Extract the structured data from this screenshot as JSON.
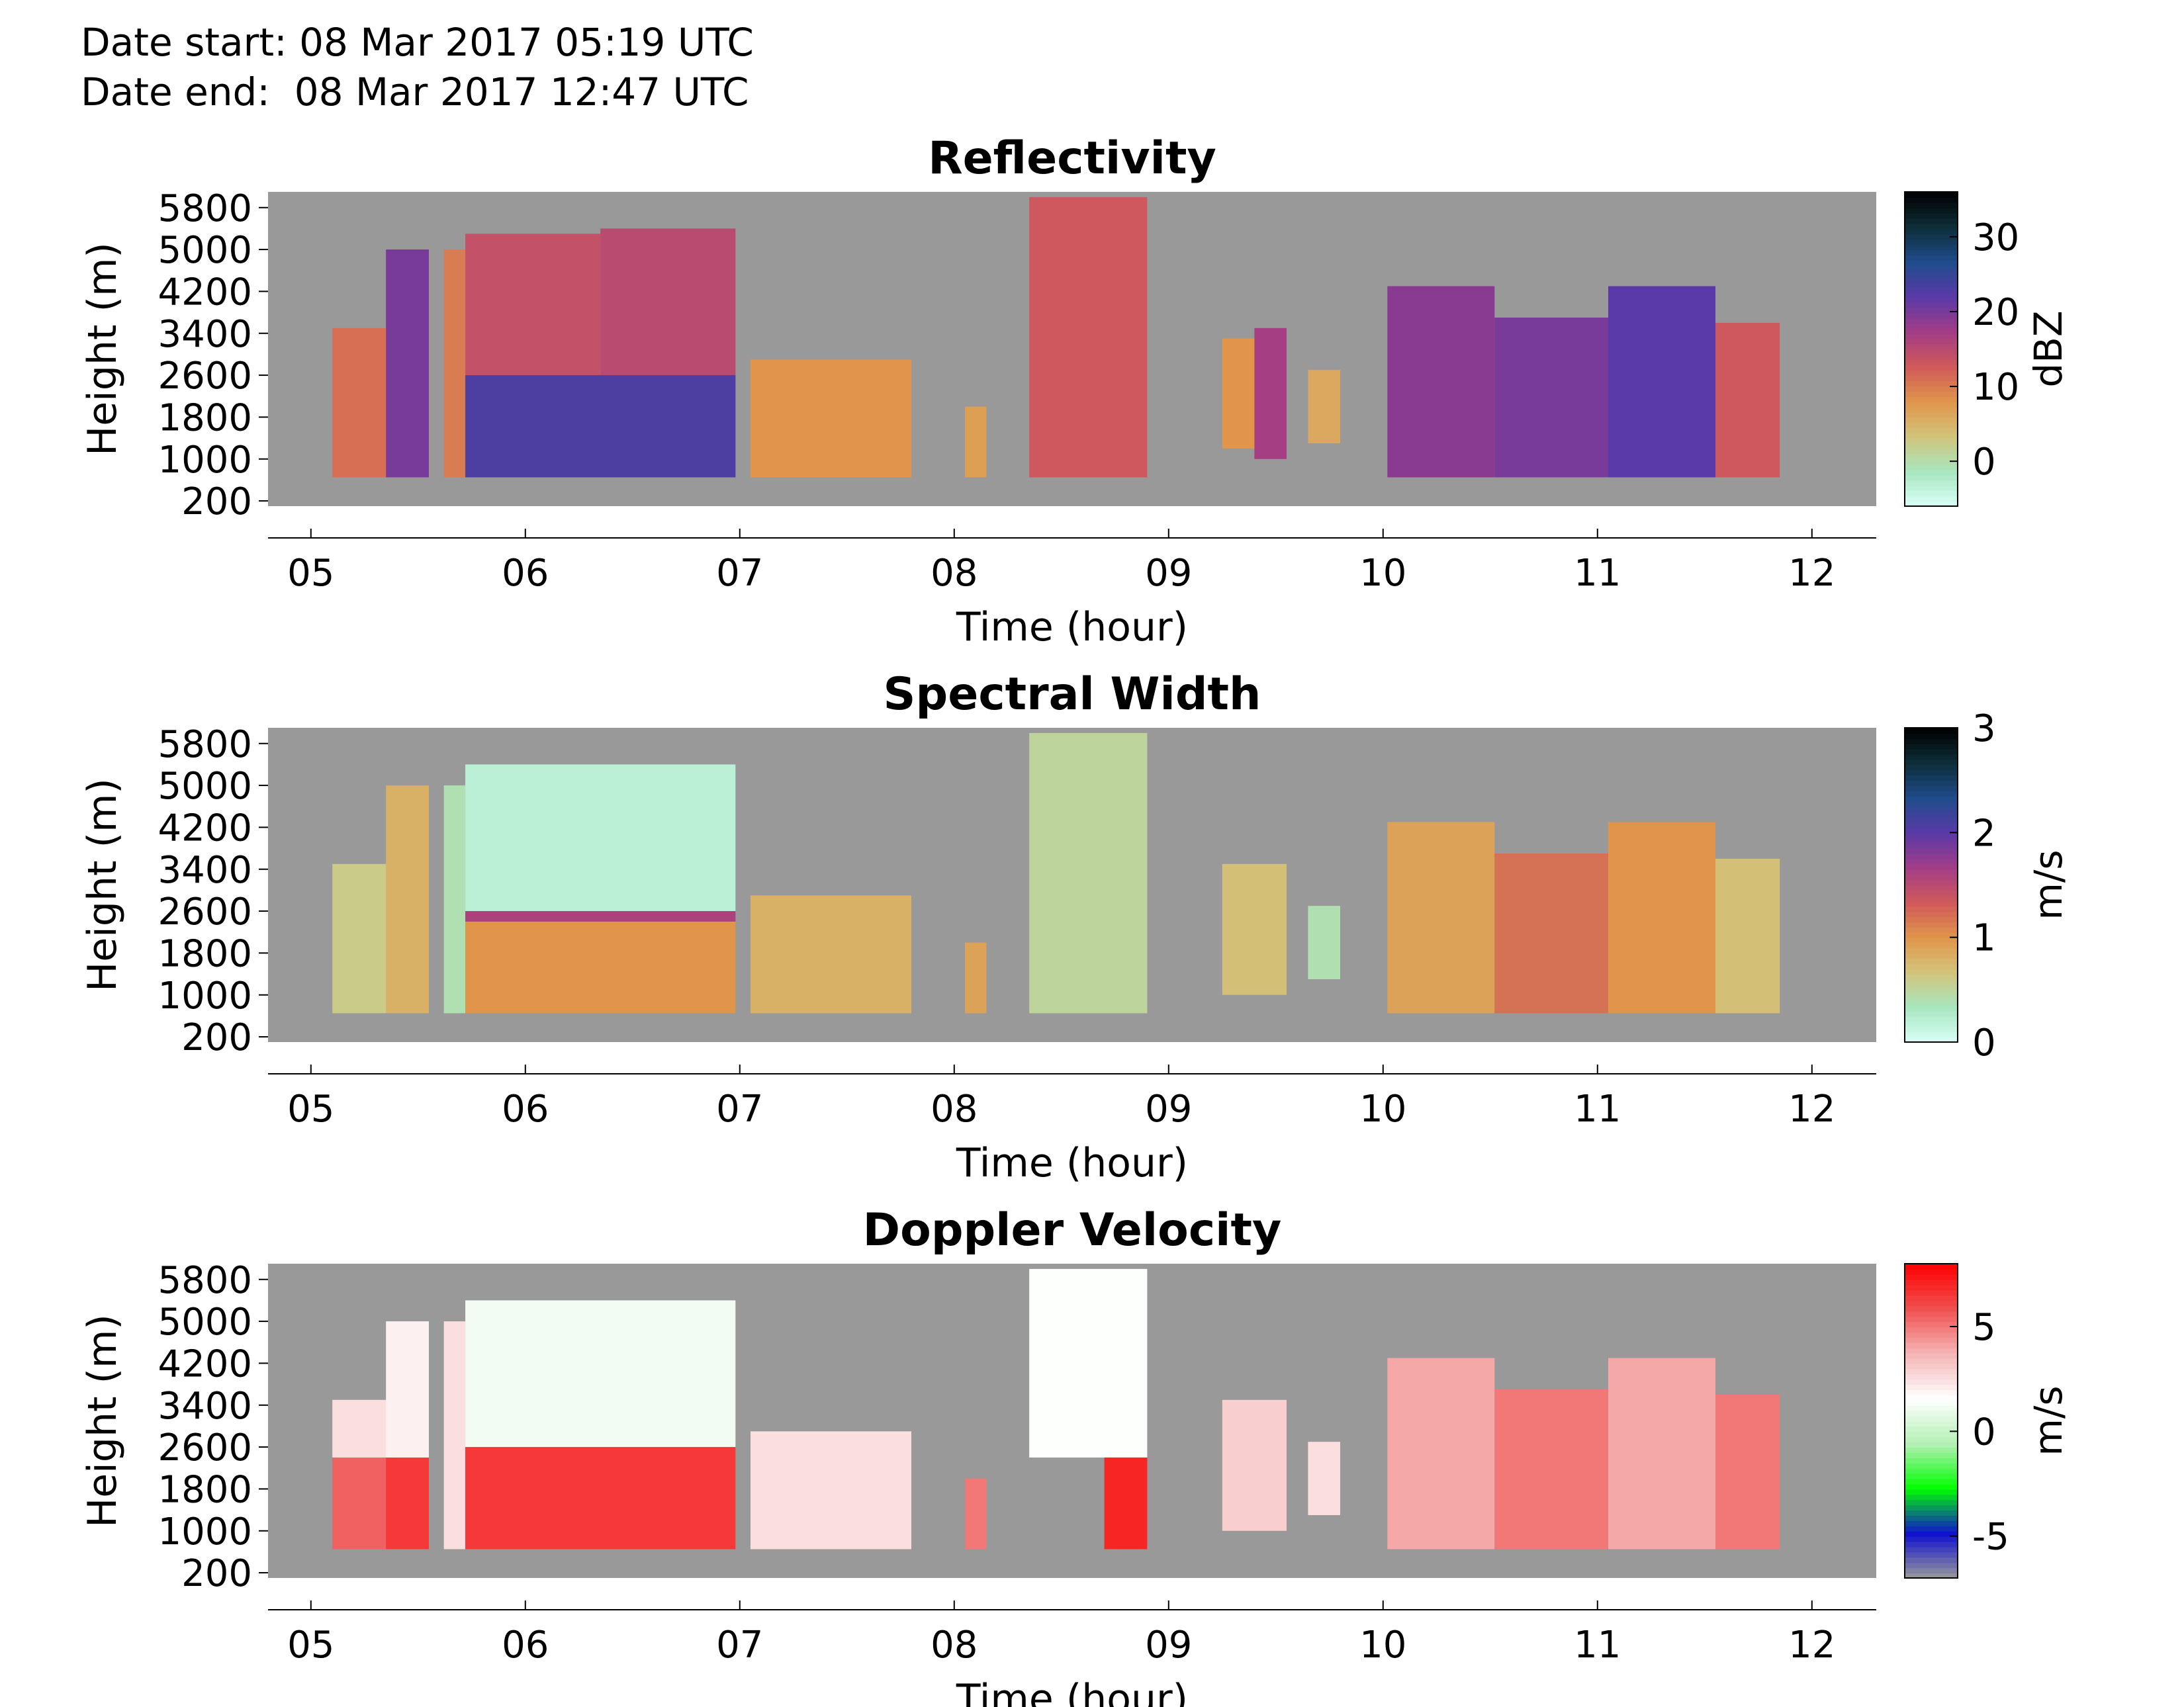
{
  "header": {
    "date_start": "Date start: 08 Mar 2017 05:19 UTC",
    "date_end": "Date end:  08 Mar 2017 12:47 UTC"
  },
  "chart_data": [
    {
      "type": "heatmap",
      "title": "Reflectivity",
      "xlabel": "Time (hour)",
      "ylabel": "Height (m)",
      "colorbar_label": "dBZ",
      "xlim": [
        4.8,
        12.3
      ],
      "ylim": [
        100,
        6100
      ],
      "xticks": [
        "05",
        "06",
        "07",
        "08",
        "09",
        "10",
        "11",
        "12"
      ],
      "yticks": [
        "200",
        "1000",
        "1800",
        "2600",
        "3400",
        "4200",
        "5000",
        "5800"
      ],
      "cbar_range": [
        -6,
        36
      ],
      "cbar_ticks": [
        "0",
        "10",
        "20",
        "30"
      ],
      "colormap": [
        "#d9fff7",
        "#a8e6c0",
        "#d2c47a",
        "#e0954a",
        "#d05a5a",
        "#a33c86",
        "#5a3aa8",
        "#1f4c8c",
        "#0d2e38",
        "#000000"
      ],
      "na_color": "#999999",
      "echo_regions": [
        {
          "t": [
            5.1,
            5.4
          ],
          "h": [
            650,
            3500
          ],
          "v": 11
        },
        {
          "t": [
            5.35,
            5.55
          ],
          "h": [
            650,
            5000
          ],
          "v": 20
        },
        {
          "t": [
            5.62,
            5.72
          ],
          "h": [
            650,
            5000
          ],
          "v": 10
        },
        {
          "t": [
            5.72,
            6.35
          ],
          "h": [
            650,
            5300
          ],
          "v": 14
        },
        {
          "t": [
            6.35,
            6.98
          ],
          "h": [
            650,
            5400
          ],
          "v": 15
        },
        {
          "t": [
            5.72,
            6.98
          ],
          "h": [
            650,
            2600
          ],
          "v": 23
        },
        {
          "t": [
            7.05,
            7.8
          ],
          "h": [
            650,
            2900
          ],
          "v": 8
        },
        {
          "t": [
            8.05,
            8.15
          ],
          "h": [
            650,
            2000
          ],
          "v": 7
        },
        {
          "t": [
            8.35,
            8.9
          ],
          "h": [
            650,
            6000
          ],
          "v": 13
        },
        {
          "t": [
            9.25,
            9.45
          ],
          "h": [
            1200,
            3300
          ],
          "v": 8
        },
        {
          "t": [
            9.4,
            9.55
          ],
          "h": [
            1000,
            3500
          ],
          "v": 17
        },
        {
          "t": [
            9.65,
            9.8
          ],
          "h": [
            1300,
            2700
          ],
          "v": 6
        },
        {
          "t": [
            10.02,
            10.52
          ],
          "h": [
            650,
            4300
          ],
          "v": 19
        },
        {
          "t": [
            10.52,
            11.05
          ],
          "h": [
            650,
            3700
          ],
          "v": 20
        },
        {
          "t": [
            11.05,
            11.55
          ],
          "h": [
            650,
            4300
          ],
          "v": 22
        },
        {
          "t": [
            11.55,
            11.85
          ],
          "h": [
            650,
            3600
          ],
          "v": 13
        }
      ]
    },
    {
      "type": "heatmap",
      "title": "Spectral Width",
      "xlabel": "Time (hour)",
      "ylabel": "Height (m)",
      "colorbar_label": "m/s",
      "xlim": [
        4.8,
        12.3
      ],
      "ylim": [
        100,
        6100
      ],
      "xticks": [
        "05",
        "06",
        "07",
        "08",
        "09",
        "10",
        "11",
        "12"
      ],
      "yticks": [
        "200",
        "1000",
        "1800",
        "2600",
        "3400",
        "4200",
        "5000",
        "5800"
      ],
      "cbar_range": [
        0,
        3
      ],
      "cbar_ticks": [
        "0",
        "1",
        "2",
        "3"
      ],
      "colormap": [
        "#d9fff7",
        "#a8e6c0",
        "#d2c47a",
        "#e0954a",
        "#d05a5a",
        "#a33c86",
        "#5a3aa8",
        "#1f4c8c",
        "#0d2e38",
        "#000000"
      ],
      "na_color": "#999999",
      "echo_regions": [
        {
          "t": [
            5.1,
            5.4
          ],
          "h": [
            650,
            3500
          ],
          "v": 0.6
        },
        {
          "t": [
            5.35,
            5.55
          ],
          "h": [
            650,
            5000
          ],
          "v": 0.8
        },
        {
          "t": [
            5.62,
            5.72
          ],
          "h": [
            650,
            5000
          ],
          "v": 0.4
        },
        {
          "t": [
            5.72,
            6.98
          ],
          "h": [
            2600,
            5400
          ],
          "v": 0.2
        },
        {
          "t": [
            5.72,
            6.98
          ],
          "h": [
            650,
            2400
          ],
          "v": 1.0
        },
        {
          "t": [
            5.72,
            6.98
          ],
          "h": [
            2400,
            2600
          ],
          "v": 1.6
        },
        {
          "t": [
            7.05,
            7.8
          ],
          "h": [
            650,
            2900
          ],
          "v": 0.8
        },
        {
          "t": [
            8.05,
            8.15
          ],
          "h": [
            650,
            2000
          ],
          "v": 0.9
        },
        {
          "t": [
            8.35,
            8.9
          ],
          "h": [
            650,
            6000
          ],
          "v": 0.5
        },
        {
          "t": [
            9.25,
            9.55
          ],
          "h": [
            1000,
            3500
          ],
          "v": 0.7
        },
        {
          "t": [
            9.65,
            9.8
          ],
          "h": [
            1300,
            2700
          ],
          "v": 0.4
        },
        {
          "t": [
            10.02,
            10.52
          ],
          "h": [
            650,
            4300
          ],
          "v": 0.9
        },
        {
          "t": [
            10.52,
            11.05
          ],
          "h": [
            650,
            3700
          ],
          "v": 1.2
        },
        {
          "t": [
            11.05,
            11.55
          ],
          "h": [
            650,
            4300
          ],
          "v": 1.0
        },
        {
          "t": [
            11.55,
            11.85
          ],
          "h": [
            650,
            3600
          ],
          "v": 0.7
        }
      ]
    },
    {
      "type": "heatmap",
      "title": "Doppler Velocity",
      "xlabel": "Time (hour)",
      "ylabel": "Height (m)",
      "colorbar_label": "m/s",
      "xlim": [
        4.8,
        12.3
      ],
      "ylim": [
        100,
        6100
      ],
      "xticks": [
        "05",
        "06",
        "07",
        "08",
        "09",
        "10",
        "11",
        "12"
      ],
      "yticks": [
        "200",
        "1000",
        "1800",
        "2600",
        "3400",
        "4200",
        "5000",
        "5800"
      ],
      "cbar_range": [
        -7,
        8
      ],
      "cbar_ticks": [
        "-5",
        "0",
        "5"
      ],
      "colormap": [
        "#999999",
        "#1010d0",
        "#00ff00",
        "#b4f0b4",
        "#ffffff",
        "#f5b5b5",
        "#f05050",
        "#ff0000"
      ],
      "na_color": "#999999",
      "echo_regions": [
        {
          "t": [
            5.1,
            5.4
          ],
          "h": [
            650,
            2400
          ],
          "v": 5.5
        },
        {
          "t": [
            5.1,
            5.4
          ],
          "h": [
            2400,
            3500
          ],
          "v": 2.5
        },
        {
          "t": [
            5.35,
            5.55
          ],
          "h": [
            650,
            2400
          ],
          "v": 6.5
        },
        {
          "t": [
            5.35,
            5.55
          ],
          "h": [
            2400,
            5000
          ],
          "v": 2.0
        },
        {
          "t": [
            5.62,
            5.72
          ],
          "h": [
            650,
            5000
          ],
          "v": 2.5
        },
        {
          "t": [
            5.72,
            6.98
          ],
          "h": [
            2600,
            5400
          ],
          "v": 1.2
        },
        {
          "t": [
            5.72,
            6.98
          ],
          "h": [
            650,
            2600
          ],
          "v": 6.5
        },
        {
          "t": [
            7.05,
            7.8
          ],
          "h": [
            650,
            2900
          ],
          "v": 2.5
        },
        {
          "t": [
            8.05,
            8.15
          ],
          "h": [
            650,
            2000
          ],
          "v": 5.0
        },
        {
          "t": [
            8.35,
            8.9
          ],
          "h": [
            2400,
            6000
          ],
          "v": 1.5
        },
        {
          "t": [
            8.7,
            8.9
          ],
          "h": [
            650,
            2400
          ],
          "v": 7.0
        },
        {
          "t": [
            9.25,
            9.55
          ],
          "h": [
            1000,
            3500
          ],
          "v": 3.0
        },
        {
          "t": [
            9.65,
            9.8
          ],
          "h": [
            1300,
            2700
          ],
          "v": 2.5
        },
        {
          "t": [
            10.02,
            10.52
          ],
          "h": [
            650,
            4300
          ],
          "v": 4.0
        },
        {
          "t": [
            10.52,
            11.05
          ],
          "h": [
            650,
            3700
          ],
          "v": 5.0
        },
        {
          "t": [
            11.05,
            11.55
          ],
          "h": [
            650,
            4300
          ],
          "v": 4.0
        },
        {
          "t": [
            11.55,
            11.85
          ],
          "h": [
            650,
            3600
          ],
          "v": 5.0
        }
      ]
    }
  ]
}
